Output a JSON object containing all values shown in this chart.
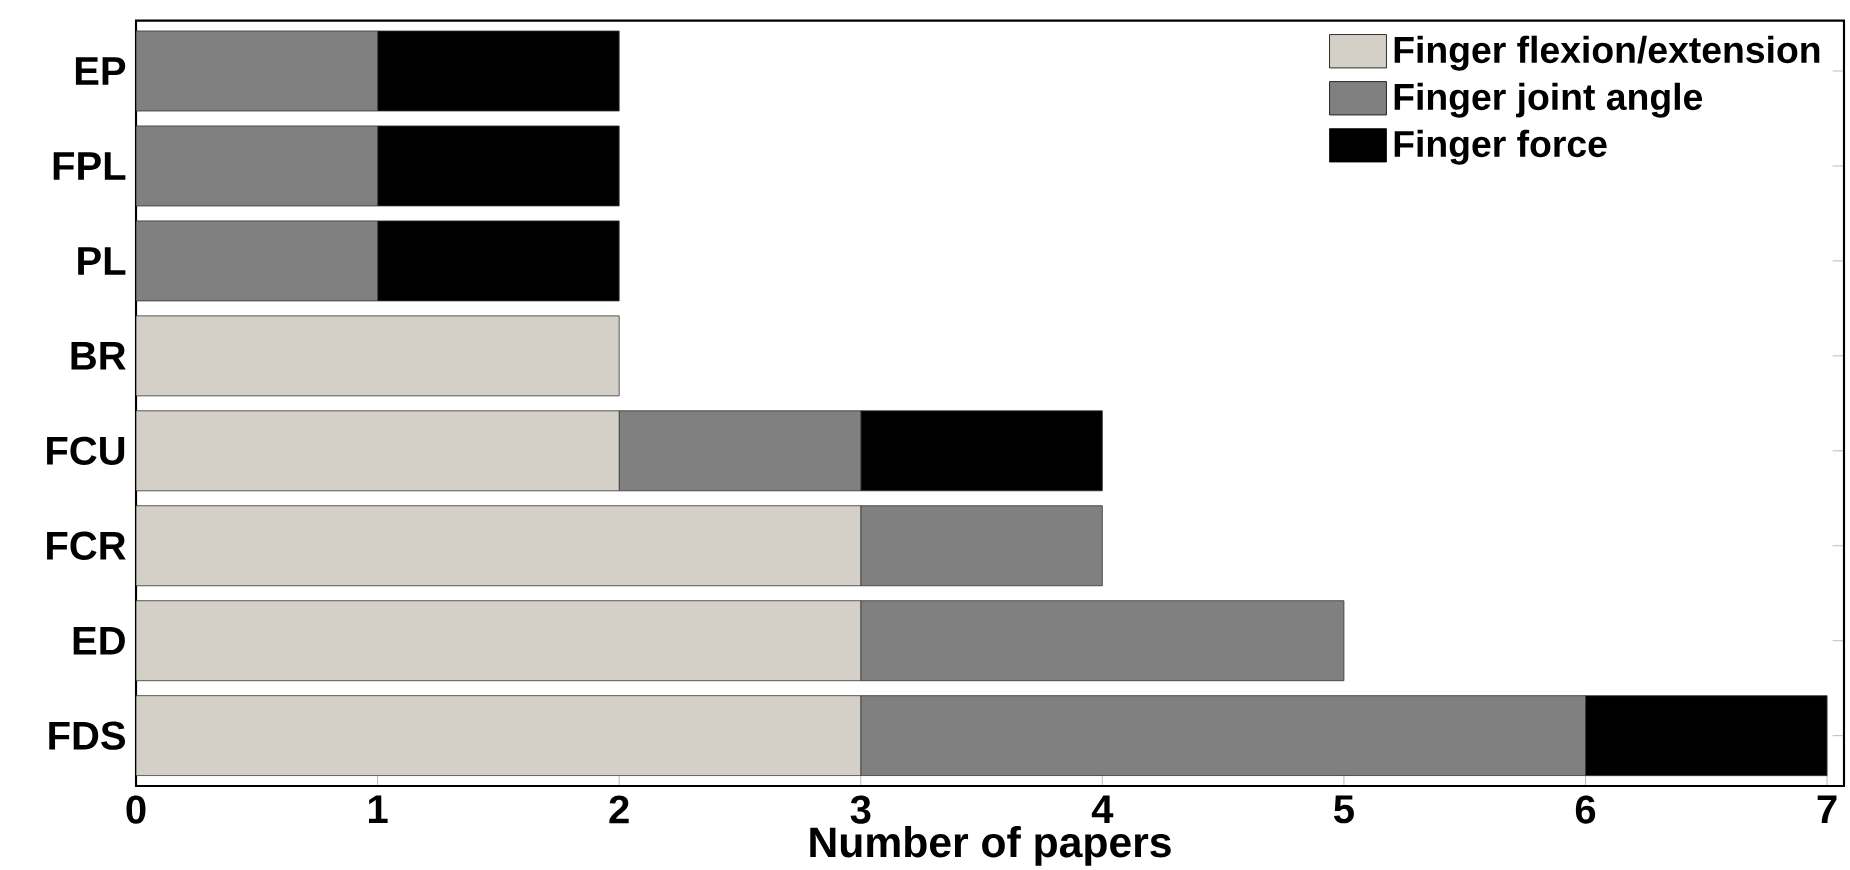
{
  "chart_data": {
    "type": "bar",
    "orientation": "horizontal",
    "stacked": true,
    "categories": [
      "EP",
      "FPL",
      "PL",
      "BR",
      "FCU",
      "FCR",
      "ED",
      "FDS"
    ],
    "series": [
      {
        "name": "Finger flexion/extension",
        "color": "#d4d0c8",
        "values": [
          0,
          0,
          0,
          2,
          2,
          3,
          3,
          3
        ]
      },
      {
        "name": "Finger joint angle",
        "color": "#808080",
        "values": [
          1,
          1,
          1,
          0,
          1,
          1,
          2,
          3
        ]
      },
      {
        "name": "Finger force",
        "color": "#000000",
        "values": [
          1,
          1,
          1,
          0,
          1,
          0,
          0,
          1
        ]
      }
    ],
    "xlim": [
      0,
      7.07
    ],
    "xticks": [
      0,
      1,
      2,
      3,
      4,
      5,
      6,
      7
    ],
    "xlabel": "Number of papers",
    "legend": "top right"
  }
}
